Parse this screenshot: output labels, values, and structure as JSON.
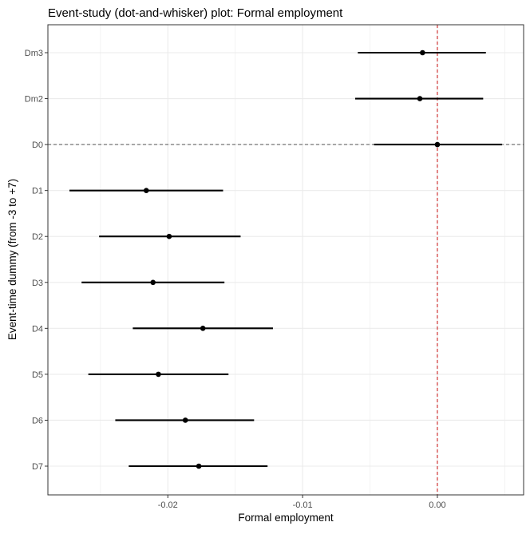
{
  "chart_data": {
    "type": "scatter",
    "title": "Event-study (dot-and-whisker) plot: Formal employment",
    "xlabel": "Formal employment",
    "ylabel": "Event-time dummy (from -3 to +7)",
    "xlim": [
      -0.0289,
      0.0064
    ],
    "x_ticks": [
      -0.02,
      -0.01,
      0.0
    ],
    "x_tick_labels": [
      "-0.02",
      "-0.01",
      "0.00"
    ],
    "categories": [
      "Dm3",
      "Dm2",
      "D0",
      "D1",
      "D2",
      "D3",
      "D4",
      "D5",
      "D6",
      "D7"
    ],
    "points": [
      {
        "label": "Dm3",
        "estimate": -0.0011,
        "ci_low": -0.0059,
        "ci_high": 0.0036
      },
      {
        "label": "Dm2",
        "estimate": -0.0013,
        "ci_low": -0.0061,
        "ci_high": 0.0034
      },
      {
        "label": "D0",
        "estimate": 0.0,
        "ci_low": -0.0047,
        "ci_high": 0.0048
      },
      {
        "label": "D1",
        "estimate": -0.0216,
        "ci_low": -0.0273,
        "ci_high": -0.0159
      },
      {
        "label": "D2",
        "estimate": -0.0199,
        "ci_low": -0.0251,
        "ci_high": -0.0146
      },
      {
        "label": "D3",
        "estimate": -0.0211,
        "ci_low": -0.0264,
        "ci_high": -0.0158
      },
      {
        "label": "D4",
        "estimate": -0.0174,
        "ci_low": -0.0226,
        "ci_high": -0.0122
      },
      {
        "label": "D5",
        "estimate": -0.0207,
        "ci_low": -0.0259,
        "ci_high": -0.0155
      },
      {
        "label": "D6",
        "estimate": -0.0187,
        "ci_low": -0.0239,
        "ci_high": -0.0136
      },
      {
        "label": "D7",
        "estimate": -0.0177,
        "ci_low": -0.0229,
        "ci_high": -0.0126
      }
    ],
    "reference_lines": [
      {
        "axis": "x",
        "value": 0.0,
        "color": "#cc2222",
        "style": "dashed"
      },
      {
        "axis": "y",
        "category": "D0",
        "color": "#666666",
        "style": "dashed"
      }
    ],
    "grid": true,
    "legend": "none",
    "colors": {
      "point": "#000000",
      "whisker": "#000000",
      "grid": "#ebebeb",
      "panel_border": "#333333"
    }
  }
}
